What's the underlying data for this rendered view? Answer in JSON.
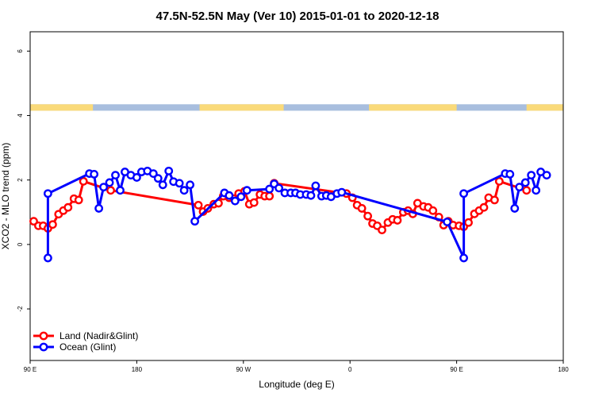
{
  "chart_data": {
    "type": "line",
    "title": "47.5N-52.5N May (Ver 10)   2015-01-01 to 2020-12-18",
    "xlabel": "Longitude (deg E)",
    "ylabel": "XCO2 - MLO trend (ppm)",
    "x_ticks": [
      {
        "value": 90,
        "label": "90 E"
      },
      {
        "value": 180,
        "label": "180"
      },
      {
        "value": 270,
        "label": "90 W"
      },
      {
        "value": 360,
        "label": "0"
      },
      {
        "value": 450,
        "label": "90 E"
      },
      {
        "value": 540,
        "label": "180"
      }
    ],
    "y_ticks": [
      {
        "value": -2,
        "label": "-2"
      },
      {
        "value": 0,
        "label": "0"
      },
      {
        "value": 2,
        "label": "2"
      },
      {
        "value": 4,
        "label": "4"
      },
      {
        "value": 6,
        "label": "6"
      }
    ],
    "xlim": [
      90,
      540
    ],
    "ylim": [
      -3.6,
      6.6
    ],
    "grid": false,
    "legend_position": "bottom-left",
    "map_strip": {
      "y_range": [
        4.15,
        4.35
      ],
      "land_color": "#FADA7A",
      "ocean_color": "#A8BEDE",
      "land_segments": [
        [
          90,
          143
        ],
        [
          233,
          304
        ],
        [
          376,
          450
        ],
        [
          509,
          540
        ]
      ]
    },
    "series": [
      {
        "name": "Land (Nadir&Glint)",
        "color": "#FF0000",
        "points": [
          [
            93,
            0.72
          ],
          [
            97,
            0.58
          ],
          [
            101,
            0.58
          ],
          [
            105,
            0.5
          ],
          [
            109,
            0.62
          ],
          [
            114,
            0.94
          ],
          [
            118,
            1.05
          ],
          [
            122,
            1.15
          ],
          [
            127,
            1.42
          ],
          [
            131,
            1.38
          ],
          [
            135,
            1.96
          ],
          [
            158,
            1.68
          ],
          [
            232,
            1.22
          ],
          [
            236,
            1.02
          ],
          [
            240,
            1.12
          ],
          [
            245,
            1.25
          ],
          [
            249,
            1.28
          ],
          [
            253,
            1.5
          ],
          [
            258,
            1.45
          ],
          [
            262,
            1.42
          ],
          [
            266,
            1.58
          ],
          [
            271,
            1.65
          ],
          [
            275,
            1.25
          ],
          [
            279,
            1.3
          ],
          [
            284,
            1.55
          ],
          [
            288,
            1.5
          ],
          [
            292,
            1.5
          ],
          [
            296,
            1.9
          ],
          [
            357,
            1.58
          ],
          [
            362,
            1.45
          ],
          [
            366,
            1.22
          ],
          [
            370,
            1.12
          ],
          [
            375,
            0.88
          ],
          [
            379,
            0.65
          ],
          [
            383,
            0.58
          ],
          [
            387,
            0.45
          ],
          [
            392,
            0.68
          ],
          [
            396,
            0.78
          ],
          [
            400,
            0.75
          ],
          [
            405,
            1.0
          ],
          [
            409,
            1.05
          ],
          [
            413,
            0.95
          ],
          [
            417,
            1.28
          ],
          [
            422,
            1.18
          ],
          [
            426,
            1.15
          ],
          [
            430,
            1.05
          ],
          [
            435,
            0.85
          ],
          [
            439,
            0.6
          ],
          [
            443,
            0.72
          ],
          [
            447,
            0.6
          ],
          [
            452,
            0.58
          ],
          [
            456,
            0.55
          ],
          [
            460,
            0.68
          ],
          [
            465,
            0.95
          ],
          [
            469,
            1.05
          ],
          [
            473,
            1.15
          ],
          [
            477,
            1.45
          ],
          [
            482,
            1.38
          ],
          [
            486,
            1.96
          ],
          [
            509,
            1.68
          ]
        ]
      },
      {
        "name": "Ocean (Glint)",
        "color": "#0000FF",
        "points": [
          [
            105,
            -0.42
          ],
          [
            105,
            1.58
          ],
          [
            140,
            2.2
          ],
          [
            144,
            2.18
          ],
          [
            148,
            1.12
          ],
          [
            152,
            1.78
          ],
          [
            157,
            1.92
          ],
          [
            162,
            2.15
          ],
          [
            166,
            1.68
          ],
          [
            170,
            2.25
          ],
          [
            175,
            2.15
          ],
          [
            180,
            2.08
          ],
          [
            184,
            2.25
          ],
          [
            189,
            2.28
          ],
          [
            194,
            2.2
          ],
          [
            198,
            2.05
          ],
          [
            202,
            1.85
          ],
          [
            207,
            2.28
          ],
          [
            211,
            1.95
          ],
          [
            216,
            1.9
          ],
          [
            220,
            1.68
          ],
          [
            225,
            1.85
          ],
          [
            229,
            0.72
          ],
          [
            254,
            1.6
          ],
          [
            258,
            1.52
          ],
          [
            263,
            1.35
          ],
          [
            268,
            1.48
          ],
          [
            273,
            1.68
          ],
          [
            292,
            1.72
          ],
          [
            296,
            1.88
          ],
          [
            300,
            1.75
          ],
          [
            305,
            1.6
          ],
          [
            310,
            1.6
          ],
          [
            314,
            1.6
          ],
          [
            318,
            1.55
          ],
          [
            323,
            1.55
          ],
          [
            327,
            1.52
          ],
          [
            331,
            1.82
          ],
          [
            336,
            1.5
          ],
          [
            340,
            1.52
          ],
          [
            344,
            1.48
          ],
          [
            349,
            1.58
          ],
          [
            353,
            1.62
          ],
          [
            442,
            0.7
          ],
          [
            456,
            -0.42
          ],
          [
            456,
            1.58
          ],
          [
            491,
            2.2
          ],
          [
            495,
            2.18
          ],
          [
            499,
            1.12
          ],
          [
            503,
            1.78
          ],
          [
            508,
            1.92
          ],
          [
            513,
            2.15
          ],
          [
            517,
            1.68
          ],
          [
            521,
            2.25
          ],
          [
            526,
            2.15
          ]
        ]
      }
    ]
  }
}
